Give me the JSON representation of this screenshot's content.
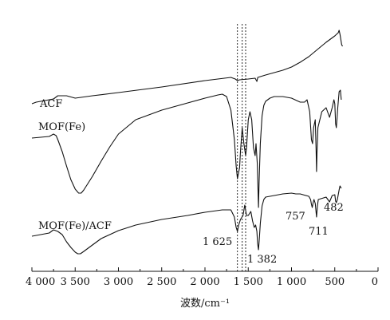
{
  "chart_data": {
    "type": "line",
    "xlabel": "波数/cm⁻¹",
    "ylabel": "",
    "xlim": [
      4000,
      0
    ],
    "x_reversed": true,
    "ticks": [
      4000,
      3500,
      3000,
      2500,
      2000,
      1500,
      1000,
      500,
      0
    ],
    "tick_labels": [
      "4 000",
      "3 500",
      "3 000",
      "2 500",
      "2 000",
      "1 500",
      "1 000",
      "500",
      "0"
    ],
    "guide_lines_x": [
      1625,
      1570,
      1530
    ],
    "series": [
      {
        "name": "ACF",
        "points": [
          [
            4000,
            130
          ],
          [
            3950,
            128
          ],
          [
            3850,
            126
          ],
          [
            3750,
            124
          ],
          [
            3700,
            120
          ],
          [
            3600,
            120
          ],
          [
            3500,
            123
          ],
          [
            3300,
            120
          ],
          [
            3000,
            116
          ],
          [
            2500,
            109
          ],
          [
            2000,
            101
          ],
          [
            1700,
            97
          ],
          [
            1650,
            99
          ],
          [
            1625,
            101
          ],
          [
            1600,
            100
          ],
          [
            1500,
            99
          ],
          [
            1420,
            98
          ],
          [
            1400,
            102
          ],
          [
            1390,
            97
          ],
          [
            1300,
            94
          ],
          [
            1100,
            88
          ],
          [
            1000,
            84
          ],
          [
            900,
            78
          ],
          [
            800,
            71
          ],
          [
            700,
            62
          ],
          [
            600,
            53
          ],
          [
            500,
            45
          ],
          [
            460,
            41
          ],
          [
            450,
            38
          ],
          [
            440,
            43
          ],
          [
            420,
            56
          ],
          [
            410,
            58
          ]
        ]
      },
      {
        "name": "MOF(Fe)",
        "points": [
          [
            4000,
            173
          ],
          [
            3900,
            172
          ],
          [
            3800,
            171
          ],
          [
            3750,
            168
          ],
          [
            3720,
            170
          ],
          [
            3700,
            175
          ],
          [
            3650,
            190
          ],
          [
            3600,
            208
          ],
          [
            3550,
            225
          ],
          [
            3500,
            237
          ],
          [
            3460,
            242
          ],
          [
            3430,
            242
          ],
          [
            3400,
            238
          ],
          [
            3300,
            221
          ],
          [
            3200,
            202
          ],
          [
            3100,
            184
          ],
          [
            3000,
            168
          ],
          [
            2800,
            150
          ],
          [
            2500,
            138
          ],
          [
            2200,
            129
          ],
          [
            2000,
            123
          ],
          [
            1850,
            119
          ],
          [
            1800,
            118
          ],
          [
            1750,
            121
          ],
          [
            1700,
            138
          ],
          [
            1660,
            175
          ],
          [
            1640,
            208
          ],
          [
            1625,
            224
          ],
          [
            1600,
            210
          ],
          [
            1590,
            190
          ],
          [
            1580,
            175
          ],
          [
            1570,
            160
          ],
          [
            1550,
            180
          ],
          [
            1530,
            195
          ],
          [
            1520,
            185
          ],
          [
            1500,
            150
          ],
          [
            1480,
            140
          ],
          [
            1460,
            150
          ],
          [
            1440,
            185
          ],
          [
            1420,
            195
          ],
          [
            1410,
            180
          ],
          [
            1395,
            205
          ],
          [
            1385,
            245
          ],
          [
            1382,
            260
          ],
          [
            1375,
            230
          ],
          [
            1360,
            180
          ],
          [
            1340,
            145
          ],
          [
            1320,
            132
          ],
          [
            1300,
            127
          ],
          [
            1250,
            123
          ],
          [
            1200,
            121
          ],
          [
            1100,
            121
          ],
          [
            1000,
            123
          ],
          [
            900,
            128
          ],
          [
            850,
            128
          ],
          [
            820,
            125
          ],
          [
            790,
            140
          ],
          [
            770,
            175
          ],
          [
            757,
            180
          ],
          [
            745,
            160
          ],
          [
            725,
            150
          ],
          [
            715,
            190
          ],
          [
            711,
            215
          ],
          [
            705,
            190
          ],
          [
            695,
            160
          ],
          [
            650,
            140
          ],
          [
            600,
            135
          ],
          [
            560,
            147
          ],
          [
            530,
            135
          ],
          [
            510,
            125
          ],
          [
            500,
            130
          ],
          [
            490,
            155
          ],
          [
            482,
            160
          ],
          [
            475,
            150
          ],
          [
            465,
            135
          ],
          [
            450,
            115
          ],
          [
            435,
            113
          ],
          [
            425,
            125
          ]
        ]
      },
      {
        "name": "MOF(Fe)/ACF",
        "points": [
          [
            4000,
            296
          ],
          [
            3900,
            294
          ],
          [
            3800,
            292
          ],
          [
            3750,
            288
          ],
          [
            3700,
            290
          ],
          [
            3650,
            294
          ],
          [
            3600,
            303
          ],
          [
            3550,
            310
          ],
          [
            3500,
            316
          ],
          [
            3470,
            318
          ],
          [
            3440,
            318
          ],
          [
            3400,
            315
          ],
          [
            3300,
            307
          ],
          [
            3200,
            299
          ],
          [
            3000,
            289
          ],
          [
            2800,
            282
          ],
          [
            2500,
            275
          ],
          [
            2200,
            270
          ],
          [
            2000,
            266
          ],
          [
            1800,
            263
          ],
          [
            1700,
            263
          ],
          [
            1660,
            272
          ],
          [
            1640,
            285
          ],
          [
            1625,
            290
          ],
          [
            1610,
            282
          ],
          [
            1590,
            275
          ],
          [
            1560,
            270
          ],
          [
            1540,
            257
          ],
          [
            1520,
            270
          ],
          [
            1500,
            270
          ],
          [
            1470,
            265
          ],
          [
            1450,
            277
          ],
          [
            1430,
            285
          ],
          [
            1415,
            282
          ],
          [
            1400,
            290
          ],
          [
            1392,
            305
          ],
          [
            1382,
            313
          ],
          [
            1372,
            300
          ],
          [
            1360,
            280
          ],
          [
            1340,
            258
          ],
          [
            1320,
            250
          ],
          [
            1300,
            247
          ],
          [
            1200,
            245
          ],
          [
            1100,
            243
          ],
          [
            1000,
            242
          ],
          [
            950,
            243
          ],
          [
            900,
            243
          ],
          [
            800,
            246
          ],
          [
            780,
            250
          ],
          [
            770,
            256
          ],
          [
            760,
            260
          ],
          [
            750,
            254
          ],
          [
            740,
            250
          ],
          [
            725,
            255
          ],
          [
            711,
            272
          ],
          [
            700,
            258
          ],
          [
            690,
            250
          ],
          [
            600,
            247
          ],
          [
            560,
            253
          ],
          [
            530,
            245
          ],
          [
            500,
            244
          ],
          [
            490,
            252
          ],
          [
            482,
            254
          ],
          [
            470,
            250
          ],
          [
            450,
            238
          ],
          [
            440,
            233
          ],
          [
            425,
            236
          ]
        ]
      }
    ],
    "series_labels": [
      "ACF",
      "MOF(Fe)",
      "MOF(Fe)/ACF"
    ],
    "peak_labels": [
      "757",
      "482",
      "711",
      "1 625",
      "1 382"
    ]
  }
}
